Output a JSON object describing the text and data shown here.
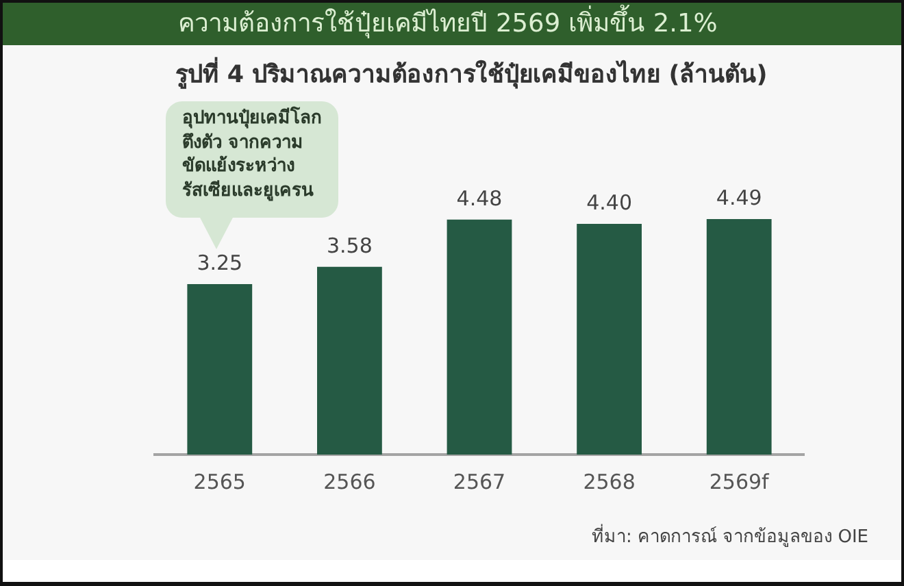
{
  "chart_data": {
    "type": "bar",
    "title": "ความต้องการใช้ปุ๋ยเคมีไทยปี 2569 เพิ่มขึ้น 2.1%",
    "subtitle": "รูปที่ 4 ปริมาณความต้องการใช้ปุ๋ยเคมีของไทย (ล้านตัน)",
    "categories": [
      "2565",
      "2566",
      "2567",
      "2568",
      "2569f"
    ],
    "values": [
      3.25,
      3.58,
      4.48,
      4.4,
      4.49
    ],
    "value_labels": [
      "3.25",
      "3.58",
      "4.48",
      "4.40",
      "4.49"
    ],
    "color": "#255a44",
    "tick_labels": "x",
    "grid": false,
    "legend": false,
    "annotations": [
      "อุปทานปุ๋ยเคมีโลก\nตึงตัว จากความ\nขัดแย้งระหว่าง\nรัสเซียและยูเครน",
      "ที่มา: คาดการณ์ จากข้อมูลของ OIE"
    ]
  }
}
